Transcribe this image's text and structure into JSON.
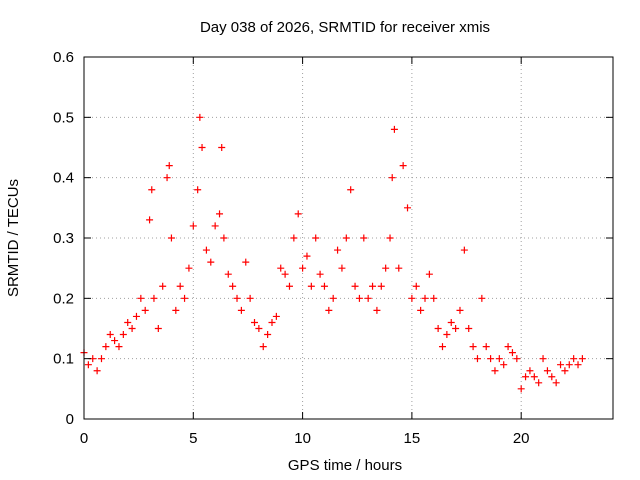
{
  "chart_data": {
    "type": "scatter",
    "title": "Day 038 of 2026, SRMTID for receiver xmis",
    "xlabel": "GPS time / hours",
    "ylabel": "SRMTID / TECUs",
    "xlim": [
      0,
      24.2
    ],
    "ylim": [
      0,
      0.6
    ],
    "x_ticks": [
      0,
      5,
      10,
      15,
      20
    ],
    "y_ticks": [
      0,
      0.1,
      0.2,
      0.3,
      0.4,
      0.5,
      0.6
    ],
    "x_tick_labels": [
      "0",
      "5",
      "10",
      "15",
      "20"
    ],
    "y_tick_labels": [
      "0",
      "0.1",
      "0.2",
      "0.3",
      "0.4",
      "0.5",
      "0.6"
    ],
    "grid": true,
    "marker": "+",
    "color": "#ff0000",
    "series": [
      {
        "name": "SRMTID",
        "x": [
          0.0,
          0.2,
          0.4,
          0.6,
          0.8,
          1.0,
          1.2,
          1.4,
          1.6,
          1.8,
          2.0,
          2.2,
          2.4,
          2.6,
          2.8,
          3.0,
          3.1,
          3.2,
          3.4,
          3.6,
          3.8,
          3.9,
          4.0,
          4.2,
          4.4,
          4.6,
          4.8,
          5.0,
          5.2,
          5.3,
          5.4,
          5.6,
          5.8,
          6.0,
          6.2,
          6.3,
          6.4,
          6.6,
          6.8,
          7.0,
          7.2,
          7.4,
          7.6,
          7.8,
          8.0,
          8.2,
          8.4,
          8.6,
          8.8,
          9.0,
          9.2,
          9.4,
          9.6,
          9.8,
          10.0,
          10.2,
          10.4,
          10.6,
          10.8,
          11.0,
          11.2,
          11.4,
          11.6,
          11.8,
          12.0,
          12.2,
          12.4,
          12.6,
          12.8,
          13.0,
          13.2,
          13.4,
          13.6,
          13.8,
          14.0,
          14.1,
          14.2,
          14.4,
          14.6,
          14.8,
          15.0,
          15.2,
          15.4,
          15.6,
          15.8,
          16.0,
          16.2,
          16.4,
          16.6,
          16.8,
          17.0,
          17.2,
          17.4,
          17.6,
          17.8,
          18.0,
          18.2,
          18.4,
          18.6,
          18.8,
          19.0,
          19.2,
          19.4,
          19.6,
          19.8,
          20.0,
          20.2,
          20.4,
          20.6,
          20.8,
          21.0,
          21.2,
          21.4,
          21.6,
          21.8,
          22.0,
          22.2,
          22.4,
          22.6,
          22.8
        ],
        "y": [
          0.11,
          0.09,
          0.1,
          0.08,
          0.1,
          0.12,
          0.14,
          0.13,
          0.12,
          0.14,
          0.16,
          0.15,
          0.17,
          0.2,
          0.18,
          0.33,
          0.38,
          0.2,
          0.15,
          0.22,
          0.4,
          0.42,
          0.3,
          0.18,
          0.22,
          0.2,
          0.25,
          0.32,
          0.38,
          0.5,
          0.45,
          0.28,
          0.26,
          0.32,
          0.34,
          0.45,
          0.3,
          0.24,
          0.22,
          0.2,
          0.18,
          0.26,
          0.2,
          0.16,
          0.15,
          0.12,
          0.14,
          0.16,
          0.17,
          0.25,
          0.24,
          0.22,
          0.3,
          0.34,
          0.25,
          0.27,
          0.22,
          0.3,
          0.24,
          0.22,
          0.18,
          0.2,
          0.28,
          0.25,
          0.3,
          0.38,
          0.22,
          0.2,
          0.3,
          0.2,
          0.22,
          0.18,
          0.22,
          0.25,
          0.3,
          0.4,
          0.48,
          0.25,
          0.42,
          0.35,
          0.2,
          0.22,
          0.18,
          0.2,
          0.24,
          0.2,
          0.15,
          0.12,
          0.14,
          0.16,
          0.15,
          0.18,
          0.28,
          0.15,
          0.12,
          0.1,
          0.2,
          0.12,
          0.1,
          0.08,
          0.1,
          0.09,
          0.12,
          0.11,
          0.1,
          0.05,
          0.07,
          0.08,
          0.07,
          0.06,
          0.1,
          0.08,
          0.07,
          0.06,
          0.09,
          0.08,
          0.09,
          0.1,
          0.09,
          0.1
        ]
      }
    ]
  }
}
